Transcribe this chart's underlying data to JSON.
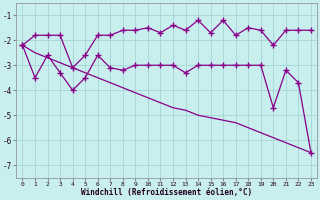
{
  "xlabel": "Windchill (Refroidissement éolien,°C)",
  "bg_color": "#c8eeee",
  "grid_color": "#a8d8d8",
  "line_color": "#880088",
  "x": [
    0,
    1,
    2,
    3,
    4,
    5,
    6,
    7,
    8,
    9,
    10,
    11,
    12,
    13,
    14,
    15,
    16,
    17,
    18,
    19,
    20,
    21,
    22,
    23
  ],
  "y_upper": [
    -2.2,
    -1.8,
    -1.8,
    -1.8,
    -3.1,
    -2.6,
    -1.8,
    -1.8,
    -1.6,
    -1.6,
    -1.5,
    -1.7,
    -1.4,
    -1.6,
    -1.2,
    -1.7,
    -1.2,
    -1.8,
    -1.5,
    -1.6,
    -2.2,
    -1.6,
    -1.6,
    -1.6
  ],
  "y_lower": [
    -2.2,
    -3.5,
    -2.6,
    -3.3,
    -4.0,
    -3.5,
    -2.6,
    -3.1,
    -3.2,
    -3.0,
    -3.0,
    -3.0,
    -3.0,
    -3.3,
    -3.0,
    -3.0,
    -3.0,
    -3.0,
    -3.0,
    -3.0,
    -4.7,
    -3.2,
    -3.7,
    -6.5
  ],
  "y_trend": [
    -2.2,
    -2.5,
    -2.7,
    -2.9,
    -3.1,
    -3.3,
    -3.5,
    -3.7,
    -3.9,
    -4.1,
    -4.3,
    -4.5,
    -4.7,
    -4.8,
    -5.0,
    -5.1,
    -5.2,
    -5.3,
    -5.5,
    -5.7,
    -5.9,
    -6.1,
    -6.3,
    -6.5
  ],
  "ylim": [
    -7.5,
    -0.5
  ],
  "xlim": [
    -0.5,
    23.5
  ],
  "yticks": [
    -7,
    -6,
    -5,
    -4,
    -3,
    -2,
    -1
  ],
  "xticks": [
    0,
    1,
    2,
    3,
    4,
    5,
    6,
    7,
    8,
    9,
    10,
    11,
    12,
    13,
    14,
    15,
    16,
    17,
    18,
    19,
    20,
    21,
    22,
    23
  ]
}
